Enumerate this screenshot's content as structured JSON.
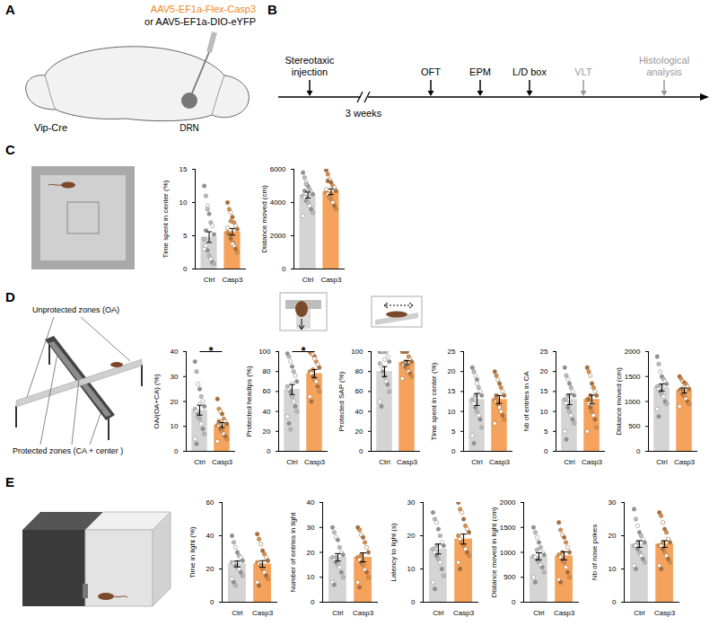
{
  "figure": {
    "panel_labels": [
      "A",
      "B",
      "C",
      "D",
      "E"
    ],
    "A": {
      "texts": [
        {
          "text": "AAV5-EF1a-Flex-Casp3",
          "color": "#f08a24"
        },
        {
          "text": "or AAV5-EF1a-DIO-eYFP",
          "color": "#000000"
        }
      ],
      "strain": "Vip-Cre",
      "region": "DRN"
    },
    "B": {
      "events": [
        {
          "label": "Stereotaxic injection",
          "color": "#000000"
        },
        {
          "label": "OFT",
          "color": "#000000"
        },
        {
          "label": "EPM",
          "color": "#000000"
        },
        {
          "label": "L/D box",
          "color": "#000000"
        },
        {
          "label": "VLT",
          "color": "#999999"
        },
        {
          "label": "Histological analysis",
          "color": "#999999"
        }
      ],
      "gap_label": "3 weeks"
    },
    "D": {
      "zone_labels": [
        "Unprotected zones (OA)",
        "Protected zones (CA + center )"
      ]
    }
  },
  "chart_data": [
    {
      "type": "bar",
      "panel": "C",
      "y_label": "Time spent in center (%)",
      "categories": [
        "Ctrl",
        "Casp3"
      ],
      "values": [
        4.8,
        5.6
      ],
      "error": [
        0.8,
        0.5
      ],
      "points": [
        [
          12.5,
          11,
          9.5,
          8.3,
          7,
          6.5,
          5.2,
          4.5,
          3.5,
          2.8,
          2,
          1.5,
          1,
          0.8,
          3,
          5.8,
          9
        ],
        [
          10,
          9,
          8.5,
          7.8,
          7,
          6.5,
          6,
          5.5,
          5,
          4.6,
          4,
          3.5,
          3,
          2.5,
          6.2,
          5.2,
          7.2,
          3.8
        ]
      ],
      "colors": [
        "#d4d4d4",
        "#f5a35c"
      ],
      "ylim": [
        0,
        15
      ],
      "yticks": [
        0,
        5,
        10,
        15
      ]
    },
    {
      "type": "bar",
      "panel": "C",
      "y_label": "Distance moved (cm)",
      "categories": [
        "Ctrl",
        "Casp3"
      ],
      "values": [
        4450,
        4650
      ],
      "error": [
        180,
        170
      ],
      "points": [
        [
          5800,
          5500,
          5200,
          5000,
          4800,
          4600,
          4500,
          4400,
          4300,
          4100,
          4000,
          3800,
          3600,
          3400,
          3200,
          4700,
          5100
        ],
        [
          5950,
          5700,
          5400,
          5200,
          5000,
          4900,
          4700,
          4600,
          4500,
          4400,
          4200,
          4000,
          3800,
          3600,
          4800,
          5300,
          4300
        ]
      ],
      "colors": [
        "#d4d4d4",
        "#f5a35c"
      ],
      "ylim": [
        0,
        6000
      ],
      "yticks": [
        0,
        2000,
        4000,
        6000
      ]
    },
    {
      "type": "bar",
      "panel": "D",
      "y_label": "OA/(OA+CA) (%)",
      "categories": [
        "Ctrl",
        "Casp3"
      ],
      "values": [
        16.5,
        10.5
      ],
      "error": [
        2,
        1
      ],
      "annotation": "*",
      "points": [
        [
          36,
          32,
          27,
          25,
          22,
          20,
          18,
          17,
          16,
          15,
          13,
          11,
          9,
          7,
          5,
          3,
          14,
          19
        ],
        [
          21,
          17,
          16,
          15,
          13,
          12,
          11,
          10.5,
          10,
          9,
          8,
          7,
          6,
          5,
          4,
          12,
          9.5,
          11
        ]
      ],
      "colors": [
        "#d4d4d4",
        "#f5a35c"
      ],
      "ylim": [
        0,
        40
      ],
      "yticks": [
        0,
        10,
        20,
        30,
        40
      ]
    },
    {
      "type": "bar",
      "panel": "D",
      "y_label": "Protected headips (%)",
      "categories": [
        "Ctrl",
        "Casp3"
      ],
      "values": [
        62,
        78
      ],
      "error": [
        5,
        4
      ],
      "annotation": "*",
      "points": [
        [
          98,
          95,
          90,
          85,
          80,
          76,
          70,
          65,
          62,
          60,
          55,
          50,
          45,
          40,
          35,
          28,
          22,
          68
        ],
        [
          100,
          98,
          97,
          95,
          90,
          87,
          84,
          80,
          78,
          75,
          72,
          70,
          65,
          60,
          55,
          50,
          82,
          93
        ]
      ],
      "colors": [
        "#d4d4d4",
        "#f5a35c"
      ],
      "ylim": [
        0,
        100
      ],
      "yticks": [
        0,
        20,
        40,
        60,
        80,
        100
      ]
    },
    {
      "type": "bar",
      "panel": "D",
      "y_label": "Protected SAP (%)",
      "categories": [
        "Ctrl",
        "Casp3"
      ],
      "values": [
        80,
        89
      ],
      "error": [
        5,
        2
      ],
      "points": [
        [
          100,
          100,
          100,
          100,
          100,
          95,
          90,
          88,
          85,
          80,
          75,
          70,
          67,
          60,
          50,
          45,
          100,
          92
        ],
        [
          100,
          100,
          100,
          100,
          95,
          92,
          90,
          88,
          86,
          85,
          83,
          80,
          78,
          75,
          73,
          100,
          90,
          88
        ]
      ],
      "colors": [
        "#d4d4d4",
        "#f5a35c"
      ],
      "ylim": [
        0,
        100
      ],
      "yticks": [
        0,
        20,
        40,
        60,
        80,
        100
      ]
    },
    {
      "type": "bar",
      "panel": "D",
      "y_label": "Time spent in center (%)",
      "categories": [
        "Ctrl",
        "Casp3"
      ],
      "values": [
        13,
        13
      ],
      "error": [
        1.5,
        1
      ],
      "points": [
        [
          21,
          20,
          19,
          18,
          16,
          15,
          14,
          13,
          12,
          11,
          10,
          9,
          8,
          6,
          4,
          2,
          14,
          17
        ],
        [
          20,
          19,
          18,
          17,
          16,
          15,
          14,
          13,
          12.5,
          12,
          11,
          10,
          9,
          8,
          7,
          14,
          13,
          11
        ]
      ],
      "colors": [
        "#d4d4d4",
        "#f5a35c"
      ],
      "ylim": [
        0,
        25
      ],
      "yticks": [
        0,
        5,
        10,
        15,
        20,
        25
      ]
    },
    {
      "type": "bar",
      "panel": "D",
      "y_label": "Nb of entries in CA",
      "categories": [
        "Ctrl",
        "Casp3"
      ],
      "values": [
        13,
        13
      ],
      "error": [
        1.3,
        1.1
      ],
      "points": [
        [
          21,
          19,
          18,
          17,
          16,
          15,
          14,
          13,
          12,
          11,
          10,
          9,
          8,
          7,
          5,
          3,
          14,
          13
        ],
        [
          21,
          20,
          19,
          17,
          16,
          15,
          14,
          13,
          12,
          11,
          10,
          9,
          8,
          6,
          5,
          13,
          14,
          12
        ]
      ],
      "colors": [
        "#d4d4d4",
        "#f5a35c"
      ],
      "ylim": [
        0,
        25
      ],
      "yticks": [
        0,
        5,
        10,
        15,
        20,
        25
      ]
    },
    {
      "type": "bar",
      "panel": "D",
      "y_label": "Distance moved (cm)",
      "categories": [
        "Ctrl",
        "Casp3"
      ],
      "values": [
        1280,
        1220
      ],
      "error": [
        70,
        50
      ],
      "points": [
        [
          1900,
          1750,
          1600,
          1500,
          1450,
          1400,
          1350,
          1300,
          1250,
          1200,
          1150,
          1100,
          1000,
          950,
          850,
          700,
          1320,
          1280
        ],
        [
          1500,
          1450,
          1400,
          1380,
          1350,
          1300,
          1250,
          1220,
          1200,
          1150,
          1100,
          1050,
          1000,
          950,
          900,
          1250,
          1180,
          1280
        ]
      ],
      "colors": [
        "#d4d4d4",
        "#f5a35c"
      ],
      "ylim": [
        0,
        2000
      ],
      "yticks": [
        0,
        500,
        1000,
        1500,
        2000
      ]
    },
    {
      "type": "bar",
      "panel": "E",
      "y_label": "Time in light (%)",
      "categories": [
        "Ctrl",
        "Casp3"
      ],
      "values": [
        23,
        23
      ],
      "error": [
        1.8,
        2
      ],
      "points": [
        [
          40,
          36,
          33,
          30,
          28,
          27,
          25,
          24,
          23,
          22,
          21,
          20,
          18,
          16,
          14,
          12,
          10,
          24
        ],
        [
          41,
          38,
          35,
          31,
          29,
          27,
          25,
          24,
          23,
          22,
          20,
          18,
          16,
          14,
          12,
          10,
          22
        ]
      ],
      "colors": [
        "#d4d4d4",
        "#f5a35c"
      ],
      "ylim": [
        0,
        60
      ],
      "yticks": [
        0,
        20,
        40,
        60
      ]
    },
    {
      "type": "bar",
      "panel": "E",
      "y_label": "Number of entries in light",
      "categories": [
        "Ctrl",
        "Casp3"
      ],
      "values": [
        18,
        18
      ],
      "error": [
        1.5,
        1.8
      ],
      "points": [
        [
          30,
          28,
          26,
          25,
          22,
          20,
          19,
          18,
          17,
          16,
          15,
          14,
          12,
          10,
          8,
          7,
          18
        ],
        [
          30,
          29,
          27,
          26,
          24,
          22,
          20,
          18,
          17,
          16,
          15,
          13,
          12,
          10,
          8,
          6,
          19
        ]
      ],
      "colors": [
        "#d4d4d4",
        "#f5a35c"
      ],
      "ylim": [
        0,
        40
      ],
      "yticks": [
        0,
        10,
        20,
        30,
        40
      ]
    },
    {
      "type": "bar",
      "panel": "E",
      "y_label": "Latency to light (s)",
      "categories": [
        "Ctrl",
        "Casp3"
      ],
      "values": [
        16,
        19
      ],
      "error": [
        1.5,
        1.5
      ],
      "points": [
        [
          27,
          25,
          24,
          22,
          20,
          18,
          17,
          16,
          15,
          14,
          13,
          12,
          10,
          8,
          6,
          4,
          17
        ],
        [
          30,
          28,
          27,
          25,
          23,
          22,
          21,
          20,
          19,
          18,
          17,
          16,
          15,
          14,
          12,
          10,
          18
        ]
      ],
      "colors": [
        "#d4d4d4",
        "#f5a35c"
      ],
      "ylim": [
        0,
        30
      ],
      "yticks": [
        0,
        10,
        20,
        30
      ]
    },
    {
      "type": "bar",
      "panel": "E",
      "y_label": "Distance moved in light (cm)",
      "categories": [
        "Ctrl",
        "Casp3"
      ],
      "values": [
        920,
        930
      ],
      "error": [
        70,
        80
      ],
      "points": [
        [
          1500,
          1400,
          1300,
          1200,
          1100,
          1000,
          950,
          920,
          900,
          850,
          800,
          750,
          700,
          600,
          500,
          400,
          1050
        ],
        [
          1600,
          1450,
          1350,
          1300,
          1200,
          1100,
          1000,
          950,
          900,
          850,
          800,
          700,
          600,
          500,
          450,
          400,
          1000
        ]
      ],
      "colors": [
        "#d4d4d4",
        "#f5a35c"
      ],
      "ylim": [
        0,
        2000
      ],
      "yticks": [
        0,
        500,
        1000,
        1500,
        2000
      ]
    },
    {
      "type": "bar",
      "panel": "E",
      "y_label": "Nb of nose pokes",
      "categories": [
        "Ctrl",
        "Casp3"
      ],
      "values": [
        17.5,
        17.5
      ],
      "error": [
        1,
        1
      ],
      "points": [
        [
          28,
          25,
          23,
          21,
          20,
          19,
          18,
          17,
          17,
          16,
          15,
          14,
          13,
          12,
          11,
          10,
          18
        ],
        [
          27,
          26,
          24,
          22,
          21,
          19,
          18,
          17,
          17,
          16,
          15,
          14,
          13,
          12,
          11,
          10,
          18
        ]
      ],
      "colors": [
        "#d4d4d4",
        "#f5a35c"
      ],
      "ylim": [
        0,
        30
      ],
      "yticks": [
        0,
        10,
        20,
        30
      ]
    }
  ]
}
